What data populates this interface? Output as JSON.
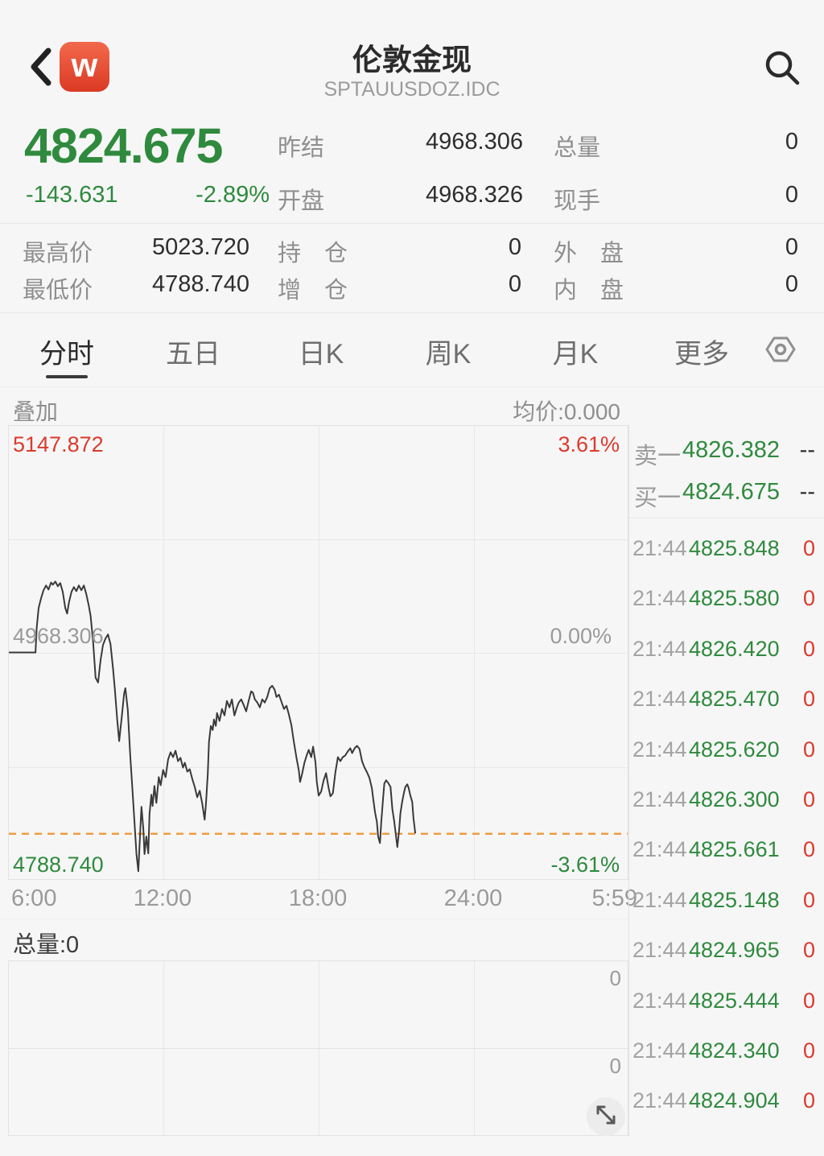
{
  "header": {
    "title": "伦敦金现",
    "subtitle": "SPTAUUSDOZ.IDC",
    "logo_letter": "w"
  },
  "quote": {
    "last_price": "4824.675",
    "change": "-143.631",
    "change_pct": "-2.89%",
    "prev_close_label": "昨结",
    "prev_close": "4968.306",
    "total_volume_label": "总量",
    "total_volume": "0",
    "open_label": "开盘",
    "open": "4968.326",
    "current_hand_label": "现手",
    "current_hand": "0",
    "high_label": "最高价",
    "high": "5023.720",
    "open_interest_label": "持　仓",
    "open_interest": "0",
    "outer_disc_label": "外　盘",
    "outer_disc": "0",
    "low_label": "最低价",
    "low": "4788.740",
    "interest_add_label": "增　仓",
    "interest_add": "0",
    "inner_disc_label": "内　盘",
    "inner_disc": "0"
  },
  "tabs": {
    "items": [
      {
        "label": "分时",
        "active": true
      },
      {
        "label": "五日",
        "active": false
      },
      {
        "label": "日K",
        "active": false
      },
      {
        "label": "周K",
        "active": false
      },
      {
        "label": "月K",
        "active": false
      },
      {
        "label": "更多",
        "active": false
      }
    ]
  },
  "chart_header": {
    "overlay_label": "叠加",
    "avg_price_label": "均价:0.000"
  },
  "chart_data": {
    "type": "line",
    "x_ticks": [
      "6:00",
      "12:00",
      "18:00",
      "24:00",
      "5:59"
    ],
    "y_left_labels": [
      "5147.872",
      "4968.306",
      "4788.740"
    ],
    "y_right_labels": [
      "3.61%",
      "0.00%",
      "-3.61%"
    ],
    "y_axis": {
      "max": 5147.872,
      "min": 4788.74
    },
    "prev_close": 4968.306,
    "current_price": 4824.675,
    "current_price_line": "dashed-orange",
    "grid": true,
    "series": [
      [
        0.0,
        4968.3
      ],
      [
        0.043,
        4968.3
      ],
      [
        0.045,
        4987.7
      ],
      [
        0.048,
        5003.6
      ],
      [
        0.052,
        5011.2
      ],
      [
        0.056,
        5017.6
      ],
      [
        0.06,
        5021.4
      ],
      [
        0.064,
        5018.2
      ],
      [
        0.068,
        5023.7
      ],
      [
        0.071,
        5022.0
      ],
      [
        0.075,
        5024.5
      ],
      [
        0.079,
        5020.8
      ],
      [
        0.083,
        5023.3
      ],
      [
        0.087,
        5016.3
      ],
      [
        0.091,
        5003.6
      ],
      [
        0.094,
        4999.1
      ],
      [
        0.097,
        5008.0
      ],
      [
        0.101,
        5016.3
      ],
      [
        0.105,
        5020.1
      ],
      [
        0.109,
        5016.9
      ],
      [
        0.113,
        5021.4
      ],
      [
        0.117,
        5017.6
      ],
      [
        0.121,
        5021.4
      ],
      [
        0.125,
        5014.4
      ],
      [
        0.129,
        5005.5
      ],
      [
        0.132,
        4997.2
      ],
      [
        0.136,
        4976.9
      ],
      [
        0.14,
        4948.3
      ],
      [
        0.144,
        4944.5
      ],
      [
        0.148,
        4962.3
      ],
      [
        0.152,
        4974.3
      ],
      [
        0.156,
        4979.4
      ],
      [
        0.16,
        4982.6
      ],
      [
        0.164,
        4975.0
      ],
      [
        0.168,
        4955.9
      ],
      [
        0.171,
        4939.4
      ],
      [
        0.175,
        4914.0
      ],
      [
        0.178,
        4898.1
      ],
      [
        0.182,
        4915.9
      ],
      [
        0.186,
        4935.6
      ],
      [
        0.188,
        4940.0
      ],
      [
        0.192,
        4922.9
      ],
      [
        0.196,
        4886.0
      ],
      [
        0.2,
        4855.5
      ],
      [
        0.204,
        4823.7
      ],
      [
        0.206,
        4808.5
      ],
      [
        0.209,
        4795.0
      ],
      [
        0.212,
        4825.6
      ],
      [
        0.214,
        4846.0
      ],
      [
        0.217,
        4828.8
      ],
      [
        0.219,
        4808.5
      ],
      [
        0.222,
        4822.4
      ],
      [
        0.225,
        4809.1
      ],
      [
        0.227,
        4840.3
      ],
      [
        0.23,
        4855.5
      ],
      [
        0.232,
        4846.6
      ],
      [
        0.235,
        4862.5
      ],
      [
        0.238,
        4849.1
      ],
      [
        0.242,
        4869.5
      ],
      [
        0.245,
        4863.1
      ],
      [
        0.249,
        4875.2
      ],
      [
        0.253,
        4869.5
      ],
      [
        0.257,
        4883.5
      ],
      [
        0.261,
        4889.2
      ],
      [
        0.265,
        4885.4
      ],
      [
        0.269,
        4890.5
      ],
      [
        0.273,
        4882.2
      ],
      [
        0.277,
        4884.8
      ],
      [
        0.281,
        4877.1
      ],
      [
        0.284,
        4880.9
      ],
      [
        0.288,
        4873.9
      ],
      [
        0.292,
        4875.8
      ],
      [
        0.296,
        4868.2
      ],
      [
        0.3,
        4861.8
      ],
      [
        0.304,
        4853.6
      ],
      [
        0.308,
        4858.7
      ],
      [
        0.312,
        4849.1
      ],
      [
        0.316,
        4835.8
      ],
      [
        0.318,
        4847.8
      ],
      [
        0.321,
        4872.0
      ],
      [
        0.323,
        4897.4
      ],
      [
        0.326,
        4910.1
      ],
      [
        0.329,
        4906.9
      ],
      [
        0.331,
        4915.2
      ],
      [
        0.334,
        4910.1
      ],
      [
        0.336,
        4920.3
      ],
      [
        0.34,
        4914.0
      ],
      [
        0.344,
        4923.5
      ],
      [
        0.348,
        4918.4
      ],
      [
        0.352,
        4929.9
      ],
      [
        0.356,
        4924.8
      ],
      [
        0.36,
        4931.1
      ],
      [
        0.364,
        4918.4
      ],
      [
        0.368,
        4924.8
      ],
      [
        0.371,
        4928.6
      ],
      [
        0.375,
        4931.1
      ],
      [
        0.379,
        4926.7
      ],
      [
        0.383,
        4921.6
      ],
      [
        0.387,
        4929.9
      ],
      [
        0.391,
        4937.5
      ],
      [
        0.394,
        4936.3
      ],
      [
        0.397,
        4931.1
      ],
      [
        0.401,
        4928.6
      ],
      [
        0.405,
        4924.8
      ],
      [
        0.409,
        4931.1
      ],
      [
        0.413,
        4928.6
      ],
      [
        0.417,
        4933.0
      ],
      [
        0.421,
        4940.0
      ],
      [
        0.425,
        4941.9
      ],
      [
        0.429,
        4938.8
      ],
      [
        0.432,
        4933.0
      ],
      [
        0.436,
        4934.9
      ],
      [
        0.44,
        4929.2
      ],
      [
        0.444,
        4923.5
      ],
      [
        0.448,
        4926.1
      ],
      [
        0.452,
        4919.1
      ],
      [
        0.456,
        4910.8
      ],
      [
        0.46,
        4897.4
      ],
      [
        0.464,
        4885.4
      ],
      [
        0.468,
        4874.6
      ],
      [
        0.47,
        4865.7
      ],
      [
        0.473,
        4871.4
      ],
      [
        0.477,
        4880.9
      ],
      [
        0.481,
        4887.3
      ],
      [
        0.484,
        4891.1
      ],
      [
        0.488,
        4885.4
      ],
      [
        0.491,
        4893.7
      ],
      [
        0.495,
        4880.9
      ],
      [
        0.497,
        4865.7
      ],
      [
        0.5,
        4854.9
      ],
      [
        0.504,
        4858.1
      ],
      [
        0.508,
        4867.0
      ],
      [
        0.512,
        4872.7
      ],
      [
        0.516,
        4861.2
      ],
      [
        0.519,
        4854.3
      ],
      [
        0.523,
        4856.8
      ],
      [
        0.527,
        4873.3
      ],
      [
        0.531,
        4885.4
      ],
      [
        0.535,
        4882.2
      ],
      [
        0.539,
        4885.4
      ],
      [
        0.543,
        4886.7
      ],
      [
        0.547,
        4889.9
      ],
      [
        0.551,
        4892.4
      ],
      [
        0.554,
        4888.6
      ],
      [
        0.558,
        4892.4
      ],
      [
        0.562,
        4894.3
      ],
      [
        0.566,
        4891.8
      ],
      [
        0.57,
        4882.2
      ],
      [
        0.574,
        4877.1
      ],
      [
        0.578,
        4873.3
      ],
      [
        0.582,
        4868.9
      ],
      [
        0.586,
        4860.6
      ],
      [
        0.588,
        4852.3
      ],
      [
        0.591,
        4841.5
      ],
      [
        0.594,
        4833.9
      ],
      [
        0.596,
        4822.4
      ],
      [
        0.599,
        4817.3
      ],
      [
        0.601,
        4833.9
      ],
      [
        0.604,
        4853.0
      ],
      [
        0.606,
        4864.4
      ],
      [
        0.609,
        4867.0
      ],
      [
        0.612,
        4865.1
      ],
      [
        0.616,
        4861.8
      ],
      [
        0.619,
        4844.1
      ],
      [
        0.622,
        4834.5
      ],
      [
        0.625,
        4821.8
      ],
      [
        0.627,
        4814.1
      ],
      [
        0.63,
        4828.1
      ],
      [
        0.632,
        4840.9
      ],
      [
        0.635,
        4850.4
      ],
      [
        0.638,
        4858.1
      ],
      [
        0.64,
        4861.8
      ],
      [
        0.643,
        4863.8
      ],
      [
        0.645,
        4861.2
      ],
      [
        0.648,
        4854.9
      ],
      [
        0.651,
        4849.8
      ],
      [
        0.653,
        4837.1
      ],
      [
        0.656,
        4825.0
      ]
    ]
  },
  "order_book": {
    "ask_label": "卖一",
    "ask_price": "4826.382",
    "ask_vol": "--",
    "bid_label": "买一",
    "bid_price": "4824.675",
    "bid_vol": "--"
  },
  "tape": {
    "rows": [
      {
        "time": "21:44",
        "price": "4825.848",
        "vol": "0"
      },
      {
        "time": "21:44",
        "price": "4825.580",
        "vol": "0"
      },
      {
        "time": "21:44",
        "price": "4826.420",
        "vol": "0"
      },
      {
        "time": "21:44",
        "price": "4825.470",
        "vol": "0"
      },
      {
        "time": "21:44",
        "price": "4825.620",
        "vol": "0"
      },
      {
        "time": "21:44",
        "price": "4826.300",
        "vol": "0"
      },
      {
        "time": "21:44",
        "price": "4825.661",
        "vol": "0"
      },
      {
        "time": "21:44",
        "price": "4825.148",
        "vol": "0"
      },
      {
        "time": "21:44",
        "price": "4824.965",
        "vol": "0"
      },
      {
        "time": "21:44",
        "price": "4825.444",
        "vol": "0"
      },
      {
        "time": "21:44",
        "price": "4824.340",
        "vol": "0"
      },
      {
        "time": "21:44",
        "price": "4824.904",
        "vol": "0"
      }
    ]
  },
  "volume_panel": {
    "title": "总量:0",
    "box_labels": [
      "0",
      "0"
    ]
  },
  "colors": {
    "up_red": "#db3b2b",
    "down_green": "#2f8a3d",
    "avg_orange": "#ef9d3e",
    "line_dark": "#3a3a3a",
    "accent_logo": "#e04a2f"
  }
}
